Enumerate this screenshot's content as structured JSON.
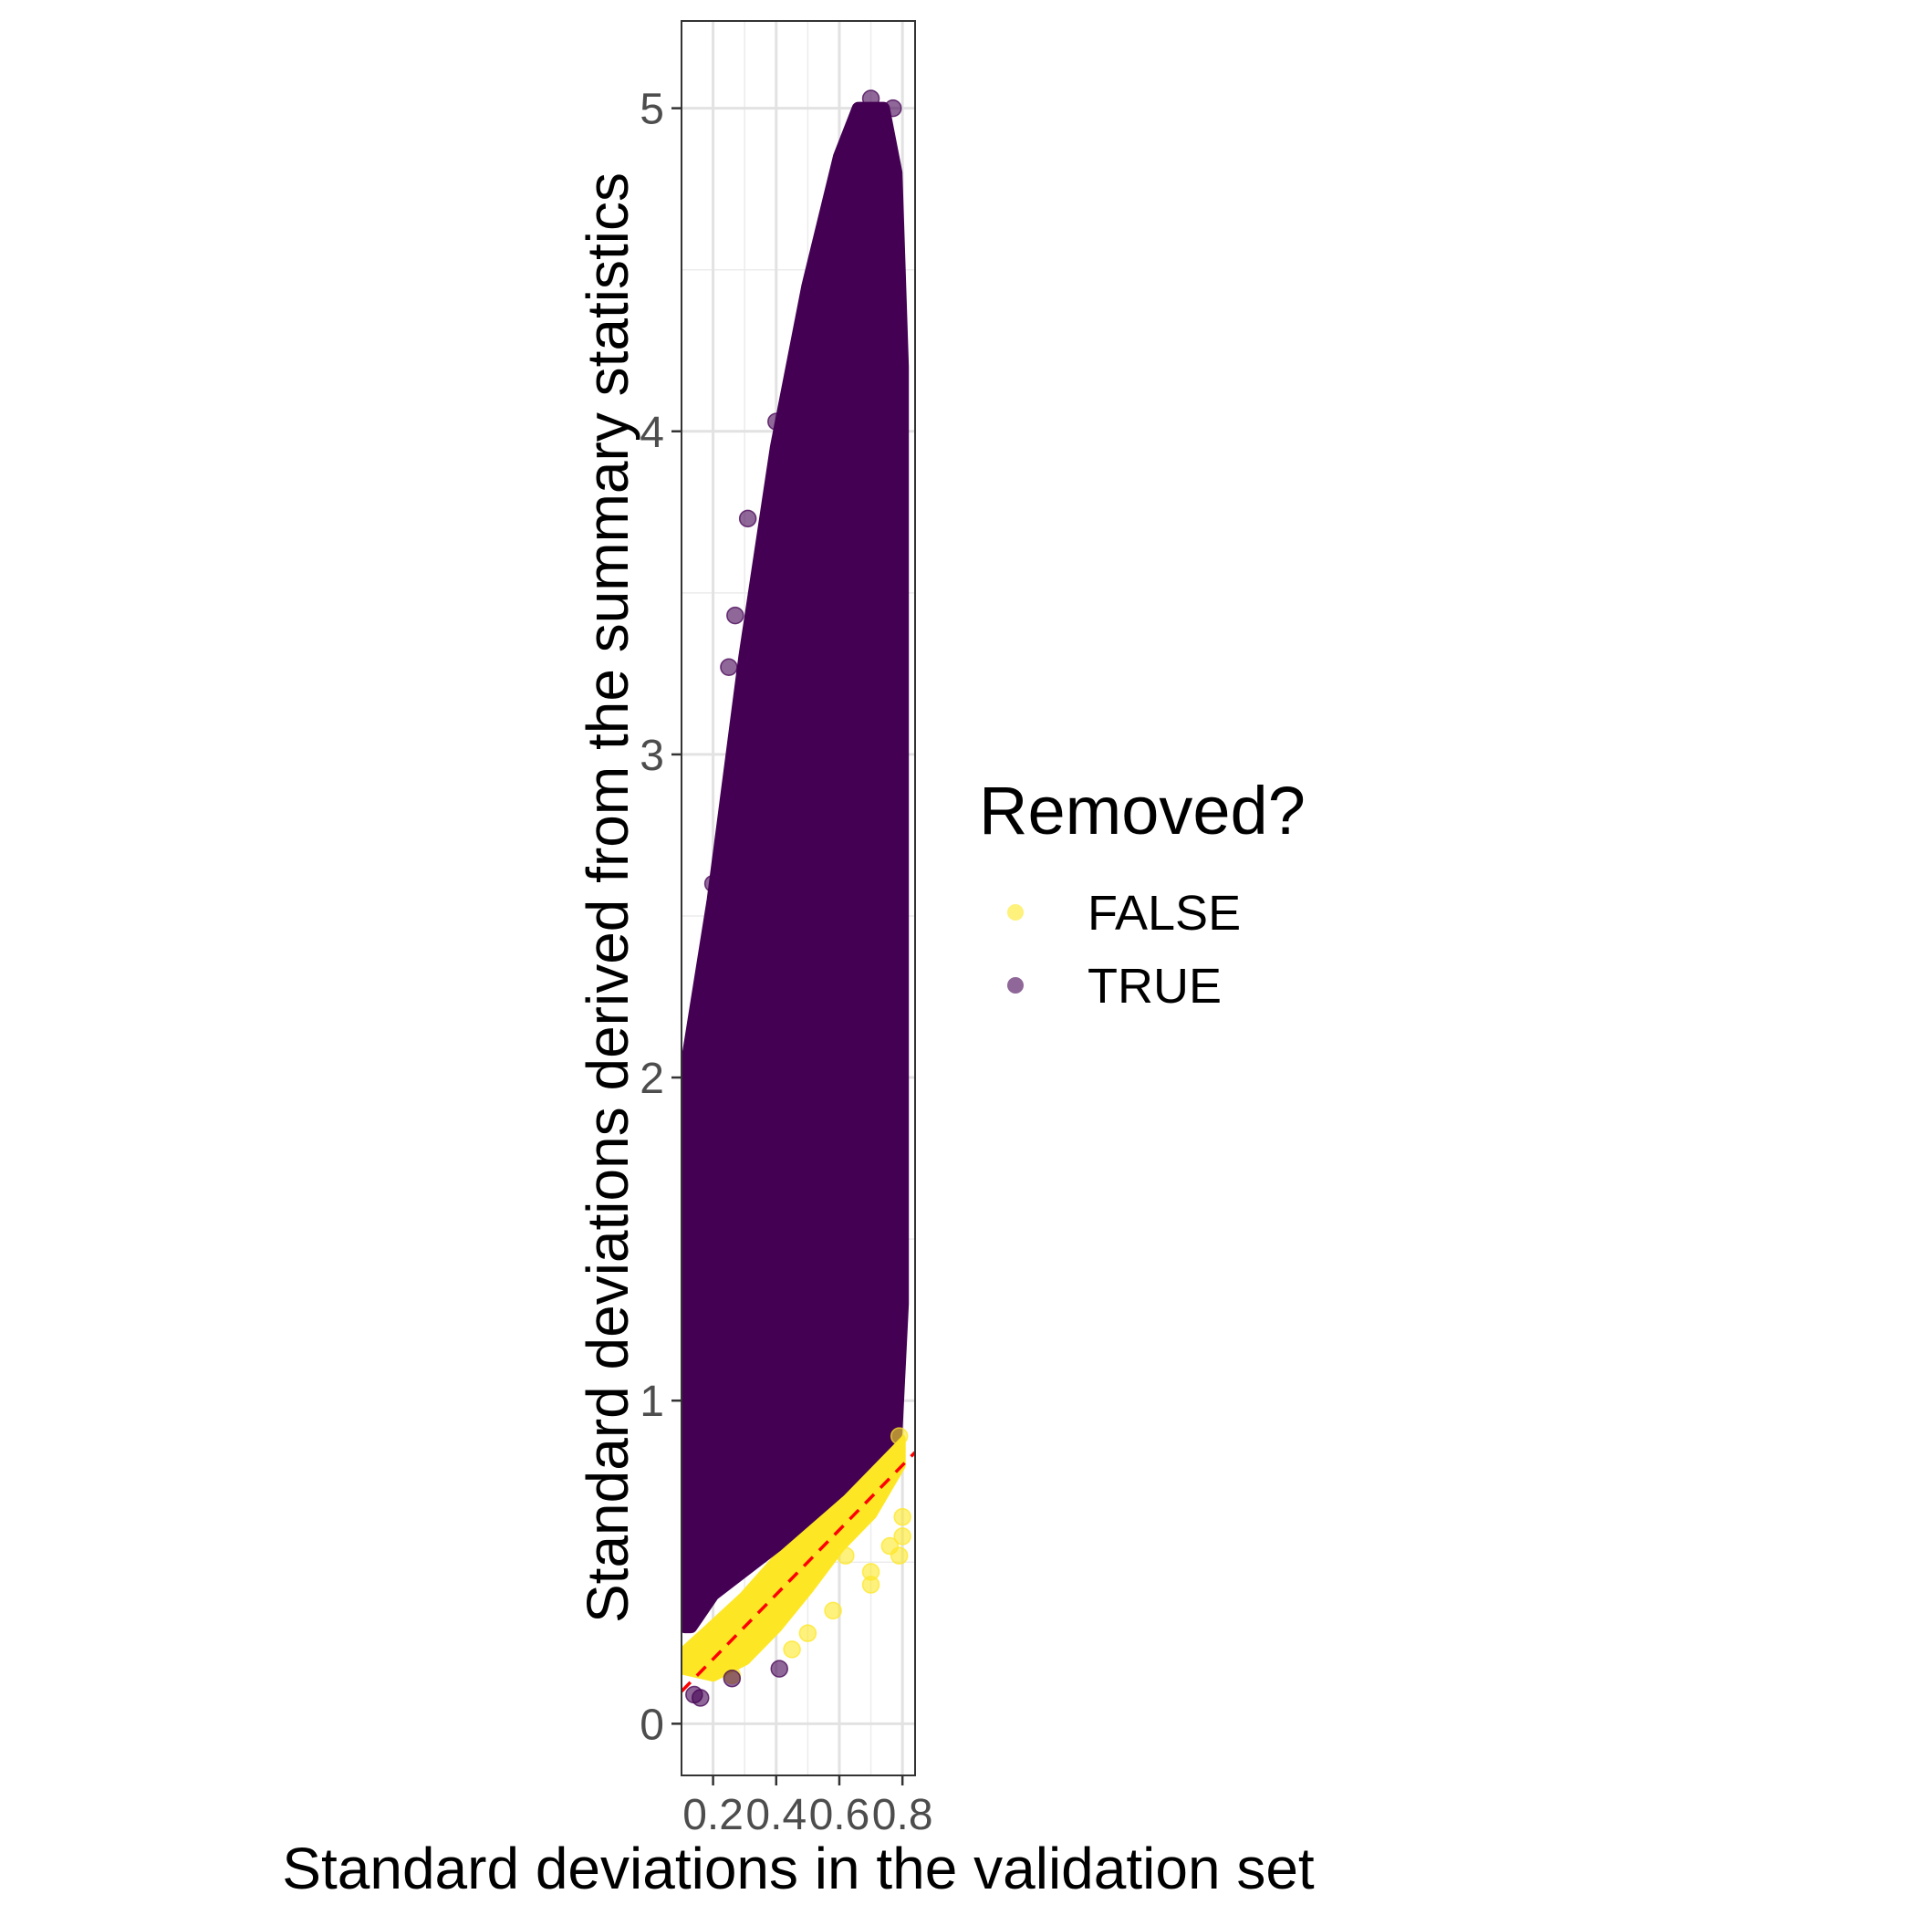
{
  "chart_data": {
    "type": "scatter",
    "xlabel": "Standard deviations in the validation set",
    "ylabel": "Standard deviations derived from the summary statistics",
    "xlim": [
      0.1,
      0.84
    ],
    "ylim": [
      -0.16,
      5.27
    ],
    "x_ticks": [
      0.2,
      0.4,
      0.6,
      0.8
    ],
    "x_tick_labels": [
      "0.2",
      "0.4",
      "0.6",
      "0.8"
    ],
    "y_ticks": [
      0,
      1,
      2,
      3,
      4,
      5
    ],
    "y_tick_labels": [
      "0",
      "1",
      "2",
      "3",
      "4",
      "5"
    ],
    "grid": true,
    "legend": {
      "title": "Removed?",
      "position": "right",
      "entries": [
        {
          "label": "FALSE",
          "color": "#FDE725"
        },
        {
          "label": "TRUE",
          "color": "#440154"
        }
      ]
    },
    "reference_line": {
      "style": "dashed",
      "color": "#FF0000",
      "slope": 1,
      "intercept": 0
    },
    "series": [
      {
        "name": "TRUE",
        "color": "#440154",
        "bulk_region": [
          [
            0.11,
            2.0
          ],
          [
            0.2,
            2.55
          ],
          [
            0.3,
            3.3
          ],
          [
            0.4,
            3.95
          ],
          [
            0.5,
            4.45
          ],
          [
            0.6,
            4.85
          ],
          [
            0.66,
            5.0
          ],
          [
            0.74,
            5.0
          ],
          [
            0.78,
            4.8
          ],
          [
            0.8,
            4.2
          ],
          [
            0.8,
            2.0
          ],
          [
            0.8,
            1.3
          ],
          [
            0.78,
            0.9
          ],
          [
            0.6,
            0.72
          ],
          [
            0.4,
            0.55
          ],
          [
            0.2,
            0.4
          ],
          [
            0.13,
            0.3
          ],
          [
            0.11,
            0.3
          ]
        ],
        "points": [
          [
            0.27,
            3.43
          ],
          [
            0.25,
            3.27
          ],
          [
            0.4,
            4.03
          ],
          [
            0.14,
            0.09
          ],
          [
            0.16,
            0.08
          ],
          [
            0.26,
            0.14
          ],
          [
            0.41,
            0.17
          ],
          [
            0.2,
            2.6
          ],
          [
            0.31,
            3.73
          ],
          [
            0.7,
            5.03
          ],
          [
            0.77,
            5.0
          ]
        ]
      },
      {
        "name": "FALSE",
        "color": "#FDE725",
        "bulk_region": [
          [
            0.11,
            0.22
          ],
          [
            0.2,
            0.3
          ],
          [
            0.3,
            0.39
          ],
          [
            0.4,
            0.5
          ],
          [
            0.5,
            0.6
          ],
          [
            0.6,
            0.7
          ],
          [
            0.7,
            0.8
          ],
          [
            0.79,
            0.88
          ],
          [
            0.79,
            0.8
          ],
          [
            0.7,
            0.65
          ],
          [
            0.6,
            0.55
          ],
          [
            0.5,
            0.42
          ],
          [
            0.4,
            0.3
          ],
          [
            0.3,
            0.2
          ],
          [
            0.2,
            0.15
          ],
          [
            0.11,
            0.17
          ]
        ],
        "points": [
          [
            0.8,
            0.64
          ],
          [
            0.8,
            0.58
          ],
          [
            0.79,
            0.52
          ],
          [
            0.76,
            0.55
          ],
          [
            0.7,
            0.47
          ],
          [
            0.7,
            0.43
          ],
          [
            0.58,
            0.35
          ],
          [
            0.5,
            0.28
          ],
          [
            0.45,
            0.23
          ],
          [
            0.26,
            0.15
          ],
          [
            0.79,
            0.89
          ],
          [
            0.62,
            0.52
          ]
        ]
      }
    ]
  }
}
